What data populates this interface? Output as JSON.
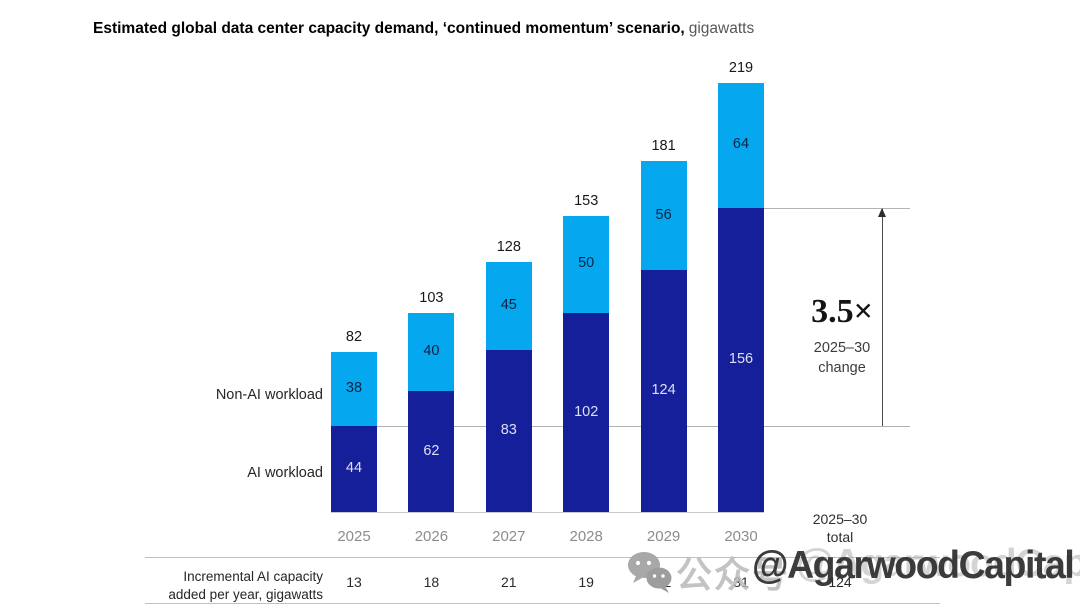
{
  "title": {
    "main": "Estimated global data center capacity demand, ‘continued momentum’ scenario,",
    "unit": "gigawatts"
  },
  "legend": {
    "non_ai": "Non-AI workload",
    "ai": "AI workload"
  },
  "chart_data": {
    "type": "bar",
    "stacked": true,
    "categories": [
      "2025",
      "2026",
      "2027",
      "2028",
      "2029",
      "2030"
    ],
    "series": [
      {
        "name": "AI workload",
        "color": "#161f9a",
        "values": [
          44,
          62,
          83,
          102,
          124,
          156
        ]
      },
      {
        "name": "Non-AI workload",
        "color": "#05a8ef",
        "values": [
          38,
          40,
          45,
          50,
          56,
          64
        ]
      }
    ],
    "totals": [
      82,
      103,
      128,
      153,
      181,
      219
    ],
    "unit": "gigawatts",
    "ylim": [
      0,
      230
    ],
    "grid": false,
    "legend_position": "left-of-first-bar",
    "reference_lines": [
      {
        "level": 44,
        "meaning": "2025 AI workload level"
      },
      {
        "level": 156,
        "meaning": "2030 AI workload level"
      }
    ],
    "annotations": [
      "3.5× 2025–30 change (AI workload 44 → 156)"
    ]
  },
  "annotation": {
    "multiplier": "3.5×",
    "period": "2025–30",
    "word": "change"
  },
  "table": {
    "row_label_line1": "Incremental AI capacity",
    "row_label_line2": "added per year, gigawatts",
    "values": [
      "13",
      "18",
      "21",
      "19",
      "22",
      "31"
    ],
    "total_header_line1": "2025–30",
    "total_header_line2": "total",
    "total_value": "124"
  },
  "watermark": {
    "platform_text": "公众号",
    "handle": "@AgarwoodCapital"
  },
  "colors": {
    "ai_bar": "#161f9a",
    "non_ai_bar": "#05a8ef",
    "value_on_dark": "#dce0f2",
    "value_on_light": "#0d2344",
    "total_label": "#191919",
    "year_label": "#8c8c8c",
    "grid_line": "#b3b3b3",
    "arrow": "#4c4c4c"
  }
}
